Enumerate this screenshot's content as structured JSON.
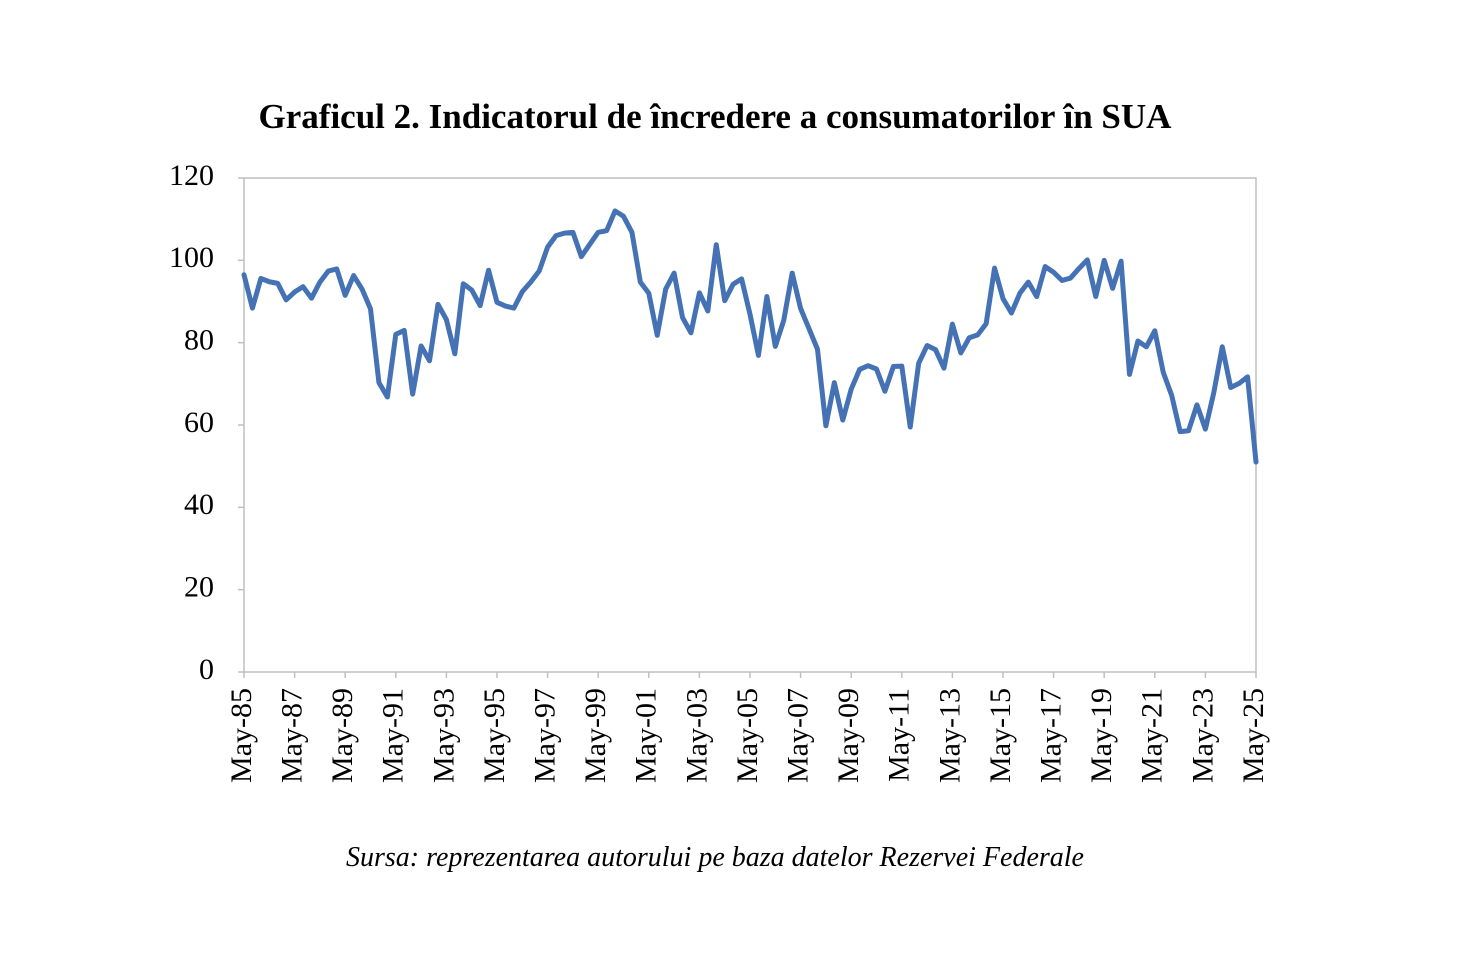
{
  "chart_data": {
    "type": "line",
    "title": "Graficul 2. Indicatorul de încredere a consumatorilor în SUA",
    "source": "Sursa: reprezentarea autorului pe baza datelor Rezervei Federale",
    "categories": [
      "May-85",
      null,
      null,
      null,
      null,
      null,
      "May-87",
      null,
      null,
      null,
      null,
      null,
      "May-89",
      null,
      null,
      null,
      null,
      null,
      "May-91",
      null,
      null,
      null,
      null,
      null,
      "May-93",
      null,
      null,
      null,
      null,
      null,
      "May-95",
      null,
      null,
      null,
      null,
      null,
      "May-97",
      null,
      null,
      null,
      null,
      null,
      "May-99",
      null,
      null,
      null,
      null,
      null,
      "May-01",
      null,
      null,
      null,
      null,
      null,
      "May-03",
      null,
      null,
      null,
      null,
      null,
      "May-05",
      null,
      null,
      null,
      null,
      null,
      "May-07",
      null,
      null,
      null,
      null,
      null,
      "May-09",
      null,
      null,
      null,
      null,
      null,
      "May-11",
      null,
      null,
      null,
      null,
      null,
      "May-13",
      null,
      null,
      null,
      null,
      null,
      "May-15",
      null,
      null,
      null,
      null,
      null,
      "May-17",
      null,
      null,
      null,
      null,
      null,
      "May-19",
      null,
      null,
      null,
      null,
      null,
      "May-21",
      null,
      null,
      null,
      null,
      null,
      "May-23",
      null,
      null,
      null,
      null,
      null,
      "May-25"
    ],
    "series": [
      {
        "name": "Indicatorul de încredere",
        "color": "#4472b4",
        "values": [
          96.5,
          88.4,
          95.6,
          94.8,
          94.4,
          90.4,
          92.3,
          93.6,
          90.8,
          94.7,
          97.4,
          97.9,
          91.5,
          96.3,
          93.0,
          88.2,
          70.3,
          66.8,
          82.0,
          83.0,
          67.5,
          79.2,
          75.6,
          89.3,
          85.6,
          77.3,
          94.3,
          92.8,
          89.0,
          97.6,
          89.8,
          88.9,
          88.4,
          92.4,
          94.7,
          97.4,
          103.2,
          106.0,
          106.6,
          106.8,
          100.9,
          103.9,
          106.8,
          107.2,
          112.0,
          110.7,
          106.8,
          94.7,
          92.0,
          81.8,
          93.0,
          96.9,
          86.1,
          82.4,
          92.1,
          87.7,
          103.8,
          90.2,
          94.2,
          95.5,
          86.9,
          76.9,
          91.2,
          79.1,
          85.4,
          96.9,
          88.3,
          83.4,
          78.4,
          59.8,
          70.3,
          61.2,
          68.7,
          73.5,
          74.4,
          73.6,
          68.2,
          74.2,
          74.3,
          59.5,
          75.0,
          79.3,
          78.3,
          73.8,
          84.5,
          77.5,
          81.2,
          81.9,
          84.6,
          98.1,
          90.7,
          87.2,
          92.0,
          94.7,
          91.2,
          98.5,
          97.1,
          95.1,
          95.7,
          98.0,
          100.1,
          91.2,
          100.0,
          93.2,
          99.8,
          72.3,
          80.4,
          79.0,
          82.9,
          72.8,
          67.2,
          58.4,
          58.6,
          64.9,
          59.0,
          67.9,
          79.0,
          69.1,
          70.1,
          71.7,
          51.0
        ]
      }
    ],
    "ylim": [
      0,
      120
    ],
    "yticks": [
      0,
      20,
      40,
      60,
      80,
      100,
      120
    ],
    "grid": false
  }
}
